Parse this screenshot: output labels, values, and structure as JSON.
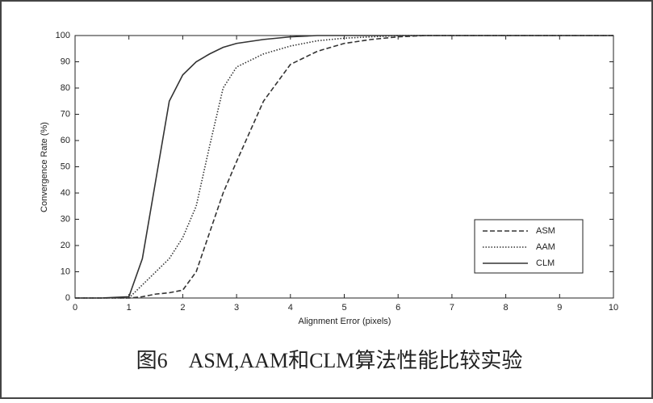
{
  "chart_data": {
    "type": "line",
    "caption": "图6　ASM,AAM和CLM算法性能比较实验",
    "xlabel": "Alignment Error (pixels)",
    "ylabel": "Convergence Rate (%)",
    "x": [
      0,
      0.5,
      1,
      1.25,
      1.5,
      1.75,
      2,
      2.25,
      2.5,
      2.75,
      3,
      3.5,
      4,
      4.5,
      5,
      5.5,
      6,
      6.5,
      7,
      8,
      9,
      10
    ],
    "series": [
      {
        "name": "ASM",
        "color": "#333333",
        "style": "dashed",
        "values": [
          0,
          0,
          0,
          0.5,
          1.5,
          2,
          3,
          10,
          25,
          40,
          52,
          75,
          89,
          94,
          97,
          98.5,
          99.5,
          100,
          100,
          100,
          100,
          100
        ]
      },
      {
        "name": "AAM",
        "color": "#333333",
        "style": "dotted",
        "values": [
          0,
          0,
          0,
          5,
          10,
          15,
          23,
          35,
          58,
          80,
          88,
          93,
          96,
          98,
          99,
          99.5,
          100,
          100,
          100,
          100,
          100,
          100
        ]
      },
      {
        "name": "CLM",
        "color": "#333333",
        "style": "solid",
        "values": [
          0,
          0,
          0.5,
          15,
          45,
          75,
          85,
          90,
          93,
          95.5,
          97,
          98.5,
          99.5,
          100,
          100,
          100,
          100,
          100,
          100,
          100,
          100,
          100
        ]
      }
    ],
    "xlim": [
      0,
      10
    ],
    "xticks": [
      0,
      1,
      2,
      3,
      4,
      5,
      6,
      7,
      8,
      9,
      10
    ],
    "ylim": [
      0,
      100
    ],
    "yticks": [
      0,
      10,
      20,
      30,
      40,
      50,
      60,
      70,
      80,
      90,
      100
    ],
    "legend": "lower right"
  }
}
